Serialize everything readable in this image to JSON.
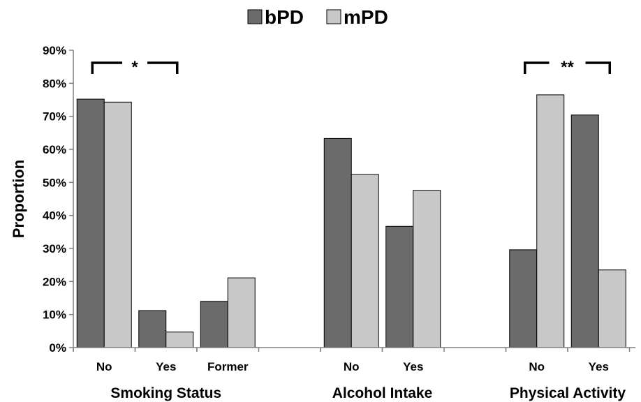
{
  "chart_data": {
    "type": "bar",
    "ylabel": "Proportion",
    "ylim": [
      0,
      90
    ],
    "yticks": [
      "0%",
      "10%",
      "20%",
      "30%",
      "40%",
      "50%",
      "60%",
      "70%",
      "80%",
      "90%"
    ],
    "legend": {
      "placement": "top-center"
    },
    "series": [
      {
        "name": "bPD",
        "color": "#6b6b6b"
      },
      {
        "name": "mPD",
        "color": "#c8c8c8"
      }
    ],
    "groups": [
      {
        "name": "Smoking Status",
        "categories": [
          "No",
          "Yes",
          "Former"
        ],
        "values": {
          "bPD": [
            75.2,
            11.2,
            14.0
          ],
          "mPD": [
            74.3,
            4.7,
            21.1
          ]
        },
        "significance": {
          "label": "*",
          "from": "No",
          "to": "Yes"
        }
      },
      {
        "name": "Alcohol Intake",
        "categories": [
          "No",
          "Yes"
        ],
        "values": {
          "bPD": [
            63.3,
            36.7
          ],
          "mPD": [
            52.4,
            47.6
          ]
        }
      },
      {
        "name": "Physical Activity",
        "categories": [
          "No",
          "Yes"
        ],
        "values": {
          "bPD": [
            29.6,
            70.4
          ],
          "mPD": [
            76.5,
            23.5
          ]
        },
        "significance": {
          "label": "**",
          "from": "No",
          "to": "Yes"
        }
      }
    ]
  }
}
